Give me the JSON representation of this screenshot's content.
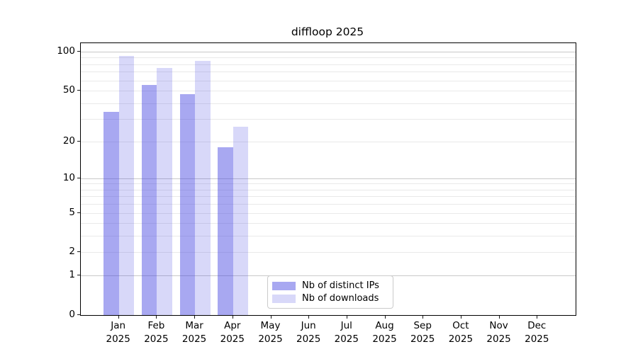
{
  "title": "diffloop 2025",
  "chart_data": {
    "type": "bar",
    "title": "diffloop 2025",
    "scale": "log1p",
    "categories": [
      "Jan",
      "Feb",
      "Mar",
      "Apr",
      "May",
      "Jun",
      "Jul",
      "Aug",
      "Sep",
      "Oct",
      "Nov",
      "Dec"
    ],
    "year_line": "2025",
    "series": [
      {
        "name": "Nb of distinct IPs",
        "color": "rgba(70,70,225,0.47)",
        "values": [
          34,
          55,
          47,
          18,
          null,
          null,
          null,
          null,
          null,
          null,
          null,
          null
        ]
      },
      {
        "name": "Nb of downloads",
        "color": "rgba(70,70,225,0.21)",
        "values": [
          93,
          75,
          85,
          26,
          null,
          null,
          null,
          null,
          null,
          null,
          null,
          null
        ]
      }
    ],
    "yticks": [
      0,
      1,
      2,
      5,
      10,
      20,
      50,
      100
    ],
    "ylim": [
      0,
      116
    ],
    "xlabel": "",
    "ylabel": "",
    "gridlines": {
      "major": [
        1,
        10,
        100
      ],
      "minor": [
        2,
        3,
        4,
        5,
        6,
        7,
        8,
        9,
        20,
        30,
        40,
        50,
        60,
        70,
        80,
        90
      ]
    },
    "legend_position": "lower center",
    "grid": "horizontal"
  },
  "colors": {
    "background": "#ffffff",
    "spine": "#000000",
    "major_grid": "#c9c9c9",
    "minor_grid": "#e9e9e9",
    "text": "#000000",
    "legend_border": "#cbcbcb"
  }
}
